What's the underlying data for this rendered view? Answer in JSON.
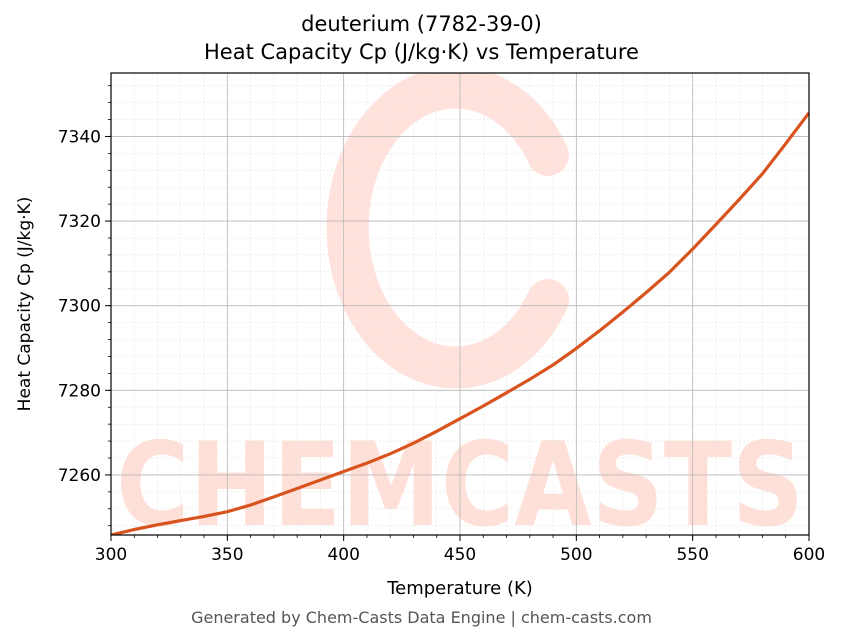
{
  "chart_data": {
    "type": "line",
    "title_line1": "deuterium (7782-39-0)",
    "title_line2": "Heat Capacity Cp (J/kg·K) vs Temperature",
    "xlabel": "Temperature (K)",
    "ylabel": "Heat Capacity Cp (J/kg·K)",
    "xlim": [
      300,
      600
    ],
    "ylim": [
      7245.8,
      7355
    ],
    "x_ticks": [
      300,
      350,
      400,
      450,
      500,
      550,
      600
    ],
    "y_ticks": [
      7260,
      7280,
      7300,
      7320,
      7340
    ],
    "grid": true,
    "series": [
      {
        "color": "#d9531e",
        "x": [
          300,
          310,
          320,
          330,
          340,
          350,
          360,
          370,
          380,
          390,
          400,
          410,
          420,
          430,
          440,
          450,
          460,
          470,
          480,
          490,
          500,
          510,
          520,
          530,
          540,
          550,
          560,
          570,
          580,
          590,
          600
        ],
        "y": [
          7245.8,
          7247.1,
          7248.2,
          7249.2,
          7250.2,
          7251.3,
          7252.9,
          7254.8,
          7256.8,
          7258.8,
          7260.8,
          7262.8,
          7265.0,
          7267.5,
          7270.3,
          7273.3,
          7276.3,
          7279.4,
          7282.6,
          7286.0,
          7289.9,
          7294.1,
          7298.5,
          7303.1,
          7307.9,
          7313.4,
          7319.2,
          7325.1,
          7331.2,
          7338.3,
          7345.6
        ]
      }
    ]
  },
  "watermark": {
    "text": "CHEMCASTS",
    "color": "#ffd6cc"
  },
  "footer": "Generated by Chem-Casts Data Engine | chem-casts.com"
}
